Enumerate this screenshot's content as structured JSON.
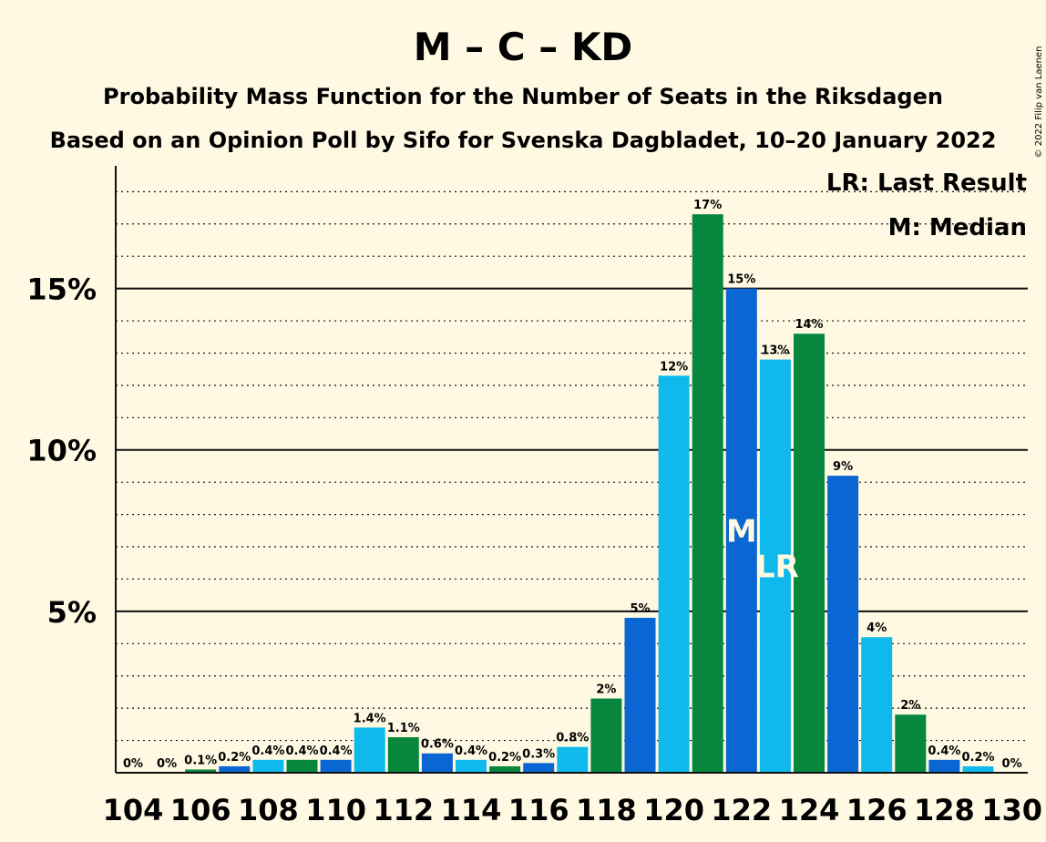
{
  "chart_data": {
    "type": "bar",
    "title": "M – C – KD",
    "subtitle": "Probability Mass Function for the Number of Seats in the Riksdagen",
    "subtitle2": "Based on an Opinion Poll by Sifo for Svenska Dagbladet, 10–20 January 2022",
    "xlabel": "",
    "ylabel": "",
    "ylim": [
      0,
      18.8
    ],
    "grid": true,
    "yticks": [
      {
        "value": 5,
        "label": "5%"
      },
      {
        "value": 10,
        "label": "10%"
      },
      {
        "value": 15,
        "label": "15%"
      }
    ],
    "xticks": [
      "104",
      "106",
      "108",
      "110",
      "112",
      "114",
      "116",
      "118",
      "120",
      "122",
      "124",
      "126",
      "128",
      "130"
    ],
    "categories": [
      104,
      105,
      106,
      107,
      108,
      109,
      110,
      111,
      112,
      113,
      114,
      115,
      116,
      117,
      118,
      119,
      120,
      121,
      122,
      123,
      124,
      125,
      126,
      127,
      128,
      129,
      130
    ],
    "values": [
      0,
      0,
      0.1,
      0.2,
      0.4,
      0.4,
      0.4,
      1.4,
      1.1,
      0.6,
      0.4,
      0.2,
      0.3,
      0.8,
      2.3,
      4.8,
      12.3,
      17.3,
      15.0,
      12.8,
      13.6,
      9.2,
      4.2,
      1.8,
      0.4,
      0.2,
      0
    ],
    "data_labels": [
      "0%",
      "0%",
      "0.1%",
      "0.2%",
      "0.4%",
      "0.4%",
      "0.4%",
      "1.4%",
      "1.1%",
      "0.6%",
      "0.4%",
      "0.2%",
      "0.3%",
      "0.8%",
      "2%",
      "5%",
      "12%",
      "17%",
      "15%",
      "13%",
      "14%",
      "9%",
      "4%",
      "2%",
      "0.4%",
      "0.2%",
      "0%"
    ],
    "colors": [
      "#0FB9EC",
      "#0A66D2",
      "#07873E"
    ],
    "bar_colors": [
      "#0FB9EC",
      "#0A66D2",
      "#07873E",
      "#0A66D2",
      "#0FB9EC",
      "#07873E",
      "#0A66D2",
      "#0FB9EC",
      "#07873E",
      "#0A66D2",
      "#0FB9EC",
      "#07873E",
      "#0A66D2",
      "#0FB9EC",
      "#07873E",
      "#0A66D2",
      "#0FB9EC",
      "#07873E",
      "#0A66D2",
      "#0FB9EC",
      "#07873E",
      "#0A66D2",
      "#0FB9EC",
      "#07873E",
      "#0A66D2",
      "#0FB9EC",
      "#07873E"
    ],
    "median_seat": 122,
    "median_marker": "M",
    "last_result_seat": 123,
    "last_result_marker": "LR",
    "legend": [
      "LR: Last Result",
      "M: Median"
    ],
    "legend_position": "top-right"
  },
  "copyright": "© 2022 Filip van Laenen"
}
